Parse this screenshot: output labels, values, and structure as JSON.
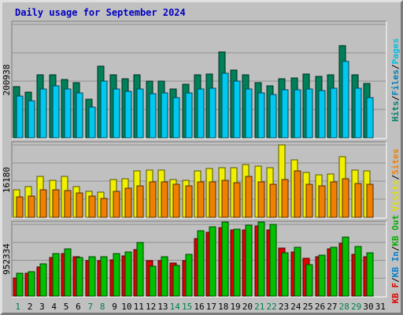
{
  "chart_data": {
    "type": "bar",
    "title": "Daily usage for September 2024",
    "days": [
      "1",
      "2",
      "3",
      "4",
      "5",
      "6",
      "7",
      "8",
      "9",
      "10",
      "11",
      "12",
      "13",
      "14",
      "15",
      "16",
      "17",
      "18",
      "19",
      "20",
      "21",
      "22",
      "23",
      "24",
      "25",
      "26",
      "27",
      "28",
      "29",
      "30",
      "31"
    ],
    "weekend_days": [
      1,
      7,
      8,
      14,
      15,
      21,
      22,
      28,
      29
    ],
    "day_colors": {
      "weekday": "#000000",
      "weekend": "#00804a"
    },
    "panels": [
      {
        "max_label": "200938",
        "max_value": 200938,
        "legend": [
          {
            "text": "Hits",
            "color": "#00806a"
          },
          {
            "text": "/",
            "color": "#000000"
          },
          {
            "text": "Files",
            "color": "#0080b8"
          },
          {
            "text": "/",
            "color": "#000000"
          },
          {
            "text": "Pages",
            "color": "#00c0e0"
          }
        ],
        "series": [
          {
            "name": "Hits",
            "color": "#00805a",
            "values": [
              91000,
              81000,
              112000,
              112000,
              103000,
              97000,
              69000,
              127000,
              111000,
              104000,
              111000,
              101000,
              101000,
              86000,
              95000,
              112000,
              113000,
              152000,
              120000,
              112000,
              98000,
              92000,
              105000,
              106000,
              113000,
              109000,
              112000,
              163000,
              112000,
              96000
            ]
          },
          {
            "name": "Files",
            "color": "#00c8f0",
            "values": [
              74000,
              65000,
              86000,
              92000,
              86000,
              79000,
              54000,
              100000,
              86000,
              83000,
              87000,
              78000,
              80000,
              71000,
              79000,
              87000,
              88000,
              114000,
              101000,
              87000,
              80000,
              77000,
              85000,
              85000,
              87000,
              84000,
              88000,
              136000,
              88000,
              71000
            ]
          }
        ]
      },
      {
        "max_label": "16180",
        "max_value": 16180,
        "legend": [
          {
            "text": "Visits",
            "color": "#e0e000"
          },
          {
            "text": "/",
            "color": "#000000"
          },
          {
            "text": "Sites",
            "color": "#f08000"
          }
        ],
        "series": [
          {
            "name": "Visits",
            "color": "#f0f000",
            "values": [
              6200,
              6900,
              9100,
              8300,
              9100,
              6800,
              5800,
              5600,
              8500,
              8700,
              10300,
              10500,
              10600,
              8500,
              8200,
              10400,
              10900,
              11100,
              11100,
              11800,
              11400,
              11000,
              16180,
              12900,
              10100,
              9500,
              9600,
              13500,
              10500,
              10300
            ]
          },
          {
            "name": "Sites",
            "color": "#f08000",
            "values": [
              4500,
              4800,
              6100,
              6100,
              6000,
              5500,
              4700,
              4300,
              5800,
              6500,
              7000,
              7900,
              7900,
              7400,
              7000,
              7900,
              7900,
              8200,
              7800,
              9100,
              7900,
              7400,
              8400,
              10300,
              7400,
              7000,
              7900,
              8600,
              7600,
              7300
            ]
          }
        ]
      },
      {
        "max_label": "952334",
        "max_value": 952334,
        "legend": [
          {
            "text": "KB F",
            "color": "#e00000"
          },
          {
            "text": "/",
            "color": "#000000"
          },
          {
            "text": "KB In",
            "color": "#0080d0"
          },
          {
            "text": "/",
            "color": "#000000"
          },
          {
            "text": "KB Out",
            "color": "#00b000"
          }
        ],
        "series": [
          {
            "name": "KB F",
            "color": "#e00000",
            "values": [
              240000,
              300000,
              390000,
              510000,
              560000,
              520000,
              470000,
              470000,
              480000,
              530000,
              620000,
              470000,
              470000,
              440000,
              470000,
              760000,
              850000,
              910000,
              880000,
              880000,
              930000,
              880000,
              640000,
              590000,
              500000,
              520000,
              630000,
              700000,
              550000,
              520000
            ]
          },
          {
            "name": "KB Out",
            "color": "#00c000",
            "values": [
              300000,
              320000,
              430000,
              570000,
              630000,
              510000,
              520000,
              520000,
              560000,
              590000,
              710000,
              400000,
              520000,
              410000,
              550000,
              870000,
              920000,
              980000,
              890000,
              940000,
              980000,
              950000,
              580000,
              650000,
              420000,
              540000,
              650000,
              780000,
              660000,
              580000
            ]
          }
        ]
      }
    ]
  }
}
